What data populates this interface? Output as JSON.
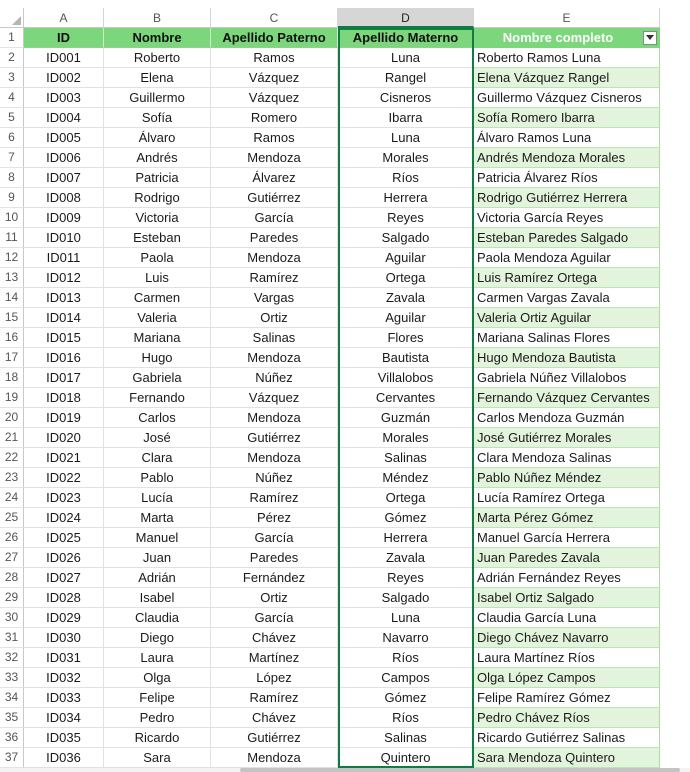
{
  "columns": [
    "A",
    "B",
    "C",
    "D",
    "E"
  ],
  "selected_column": "D",
  "headers": {
    "id": "ID",
    "nombre": "Nombre",
    "paterno": "Apellido Paterno",
    "materno": "Apellido Materno",
    "completo": "Nombre completo"
  },
  "rows": [
    {
      "n": "2",
      "id": "ID001",
      "nombre": "Roberto",
      "paterno": "Ramos",
      "materno": "Luna",
      "completo": "Roberto Ramos Luna"
    },
    {
      "n": "3",
      "id": "ID002",
      "nombre": "Elena",
      "paterno": "Vázquez",
      "materno": "Rangel",
      "completo": "Elena Vázquez Rangel"
    },
    {
      "n": "4",
      "id": "ID003",
      "nombre": "Guillermo",
      "paterno": "Vázquez",
      "materno": "Cisneros",
      "completo": "Guillermo Vázquez Cisneros"
    },
    {
      "n": "5",
      "id": "ID004",
      "nombre": "Sofía",
      "paterno": "Romero",
      "materno": "Ibarra",
      "completo": "Sofía Romero Ibarra"
    },
    {
      "n": "6",
      "id": "ID005",
      "nombre": "Álvaro",
      "paterno": "Ramos",
      "materno": "Luna",
      "completo": "Álvaro Ramos Luna"
    },
    {
      "n": "7",
      "id": "ID006",
      "nombre": "Andrés",
      "paterno": "Mendoza",
      "materno": "Morales",
      "completo": "Andrés Mendoza Morales"
    },
    {
      "n": "8",
      "id": "ID007",
      "nombre": "Patricia",
      "paterno": "Álvarez",
      "materno": "Ríos",
      "completo": "Patricia Álvarez Ríos"
    },
    {
      "n": "9",
      "id": "ID008",
      "nombre": "Rodrigo",
      "paterno": "Gutiérrez",
      "materno": "Herrera",
      "completo": "Rodrigo Gutiérrez Herrera"
    },
    {
      "n": "10",
      "id": "ID009",
      "nombre": "Victoria",
      "paterno": "García",
      "materno": "Reyes",
      "completo": "Victoria García Reyes"
    },
    {
      "n": "11",
      "id": "ID010",
      "nombre": "Esteban",
      "paterno": "Paredes",
      "materno": "Salgado",
      "completo": "Esteban Paredes Salgado"
    },
    {
      "n": "12",
      "id": "ID011",
      "nombre": "Paola",
      "paterno": "Mendoza",
      "materno": "Aguilar",
      "completo": "Paola Mendoza Aguilar"
    },
    {
      "n": "13",
      "id": "ID012",
      "nombre": "Luis",
      "paterno": "Ramírez",
      "materno": "Ortega",
      "completo": "Luis Ramírez Ortega"
    },
    {
      "n": "14",
      "id": "ID013",
      "nombre": "Carmen",
      "paterno": "Vargas",
      "materno": "Zavala",
      "completo": "Carmen Vargas Zavala"
    },
    {
      "n": "15",
      "id": "ID014",
      "nombre": "Valeria",
      "paterno": "Ortiz",
      "materno": "Aguilar",
      "completo": "Valeria Ortiz Aguilar"
    },
    {
      "n": "16",
      "id": "ID015",
      "nombre": "Mariana",
      "paterno": "Salinas",
      "materno": "Flores",
      "completo": "Mariana Salinas Flores"
    },
    {
      "n": "17",
      "id": "ID016",
      "nombre": "Hugo",
      "paterno": "Mendoza",
      "materno": "Bautista",
      "completo": "Hugo Mendoza Bautista"
    },
    {
      "n": "18",
      "id": "ID017",
      "nombre": "Gabriela",
      "paterno": "Núñez",
      "materno": "Villalobos",
      "completo": "Gabriela Núñez Villalobos"
    },
    {
      "n": "19",
      "id": "ID018",
      "nombre": "Fernando",
      "paterno": "Vázquez",
      "materno": "Cervantes",
      "completo": "Fernando Vázquez Cervantes"
    },
    {
      "n": "20",
      "id": "ID019",
      "nombre": "Carlos",
      "paterno": "Mendoza",
      "materno": "Guzmán",
      "completo": "Carlos Mendoza Guzmán"
    },
    {
      "n": "21",
      "id": "ID020",
      "nombre": "José",
      "paterno": "Gutiérrez",
      "materno": "Morales",
      "completo": "José Gutiérrez Morales"
    },
    {
      "n": "22",
      "id": "ID021",
      "nombre": "Clara",
      "paterno": "Mendoza",
      "materno": "Salinas",
      "completo": "Clara Mendoza Salinas"
    },
    {
      "n": "23",
      "id": "ID022",
      "nombre": "Pablo",
      "paterno": "Núñez",
      "materno": "Méndez",
      "completo": "Pablo Núñez Méndez"
    },
    {
      "n": "24",
      "id": "ID023",
      "nombre": "Lucía",
      "paterno": "Ramírez",
      "materno": "Ortega",
      "completo": "Lucía Ramírez Ortega"
    },
    {
      "n": "25",
      "id": "ID024",
      "nombre": "Marta",
      "paterno": "Pérez",
      "materno": "Gómez",
      "completo": "Marta Pérez Gómez"
    },
    {
      "n": "26",
      "id": "ID025",
      "nombre": "Manuel",
      "paterno": "García",
      "materno": "Herrera",
      "completo": "Manuel García Herrera"
    },
    {
      "n": "27",
      "id": "ID026",
      "nombre": "Juan",
      "paterno": "Paredes",
      "materno": "Zavala",
      "completo": "Juan Paredes Zavala"
    },
    {
      "n": "28",
      "id": "ID027",
      "nombre": "Adrián",
      "paterno": "Fernández",
      "materno": "Reyes",
      "completo": "Adrián Fernández Reyes"
    },
    {
      "n": "29",
      "id": "ID028",
      "nombre": "Isabel",
      "paterno": "Ortiz",
      "materno": "Salgado",
      "completo": "Isabel Ortiz Salgado"
    },
    {
      "n": "30",
      "id": "ID029",
      "nombre": "Claudia",
      "paterno": "García",
      "materno": "Luna",
      "completo": "Claudia García Luna"
    },
    {
      "n": "31",
      "id": "ID030",
      "nombre": "Diego",
      "paterno": "Chávez",
      "materno": "Navarro",
      "completo": "Diego Chávez Navarro"
    },
    {
      "n": "32",
      "id": "ID031",
      "nombre": "Laura",
      "paterno": "Martínez",
      "materno": "Ríos",
      "completo": "Laura Martínez Ríos"
    },
    {
      "n": "33",
      "id": "ID032",
      "nombre": "Olga",
      "paterno": "López",
      "materno": "Campos",
      "completo": "Olga López Campos"
    },
    {
      "n": "34",
      "id": "ID033",
      "nombre": "Felipe",
      "paterno": "Ramírez",
      "materno": "Gómez",
      "completo": "Felipe Ramírez Gómez"
    },
    {
      "n": "35",
      "id": "ID034",
      "nombre": "Pedro",
      "paterno": "Chávez",
      "materno": "Ríos",
      "completo": "Pedro Chávez Ríos"
    },
    {
      "n": "36",
      "id": "ID035",
      "nombre": "Ricardo",
      "paterno": "Gutiérrez",
      "materno": "Salinas",
      "completo": "Ricardo Gutiérrez Salinas"
    },
    {
      "n": "37",
      "id": "ID036",
      "nombre": "Sara",
      "paterno": "Mendoza",
      "materno": "Quintero",
      "completo": "Sara Mendoza Quintero"
    }
  ],
  "colors": {
    "header_green": "#7cd67c",
    "band_green": "#e2f5dc",
    "selection": "#107c41"
  },
  "icons": {
    "filter": "dropdown-arrow-icon",
    "corner": "select-all-triangle-icon"
  }
}
